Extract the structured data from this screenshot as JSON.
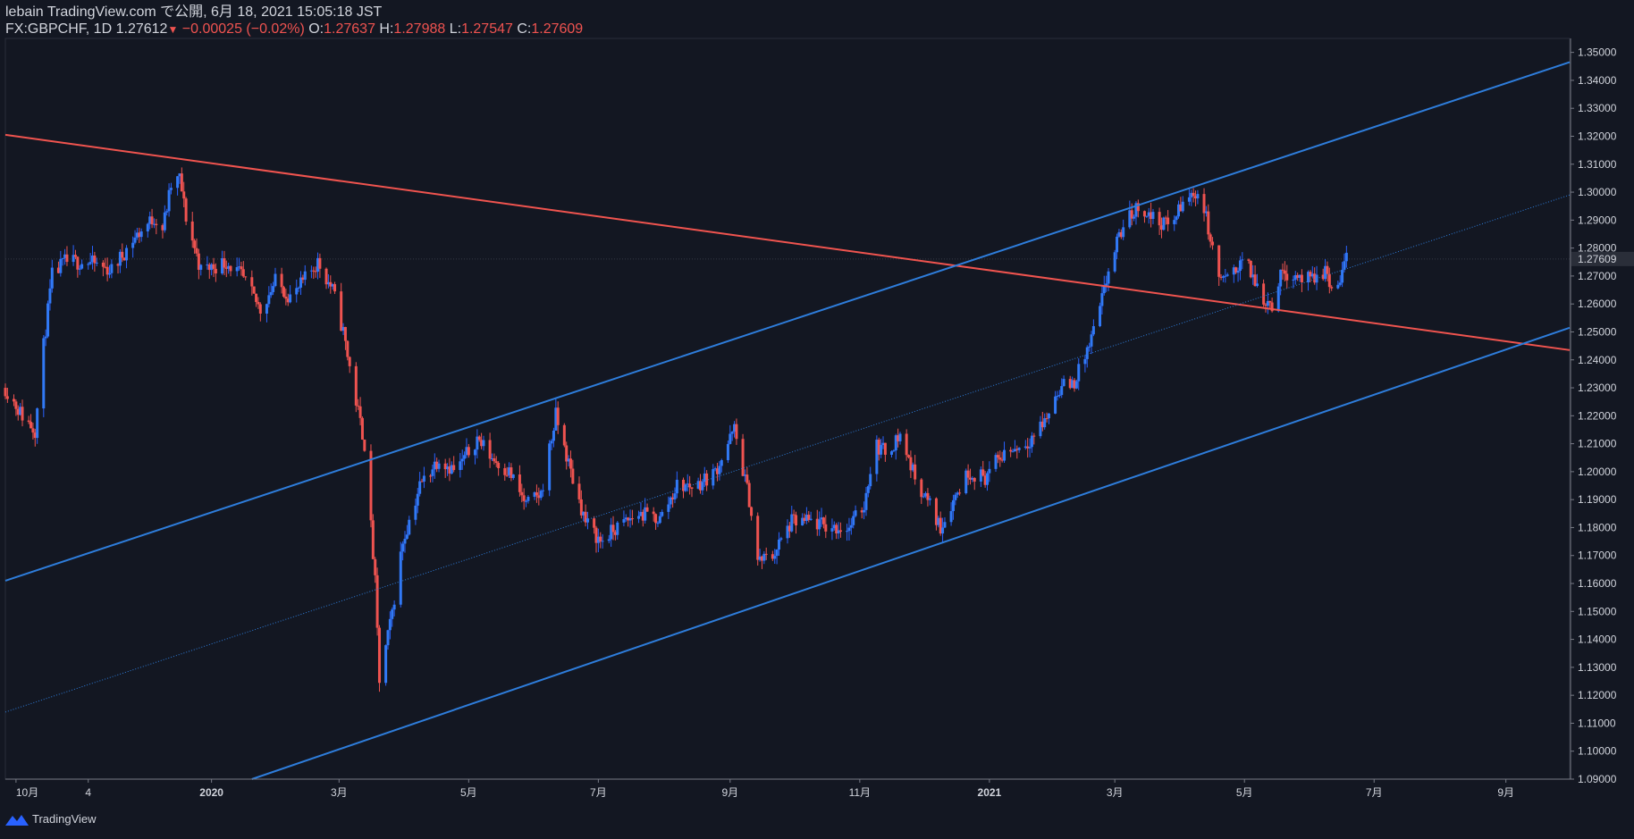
{
  "header": {
    "publish_line": "lebain TradingView.com で公開, 6月 18, 2021 15:05:18 JST",
    "symbol": "FX:GBPCHF, 1D",
    "last": "1.27612",
    "change": "−0.00025 (−0.02%)",
    "o_label": "O:",
    "o_value": "1.27637",
    "h_label": "H:",
    "h_value": "1.27988",
    "l_label": "L:",
    "l_value": "1.27547",
    "c_label": "C:",
    "c_value": "1.27609"
  },
  "footer": {
    "brand": "TradingView"
  },
  "colors": {
    "background": "#131722",
    "up": "#2962ff",
    "up_body": "#3179f5",
    "down": "#ef5350",
    "channel": "#2e7ddb",
    "resistance": "#f0544f",
    "axis": "#787b86"
  },
  "chart_data": {
    "type": "candlestick",
    "y_range": [
      1.09,
      1.355
    ],
    "y_ticks": [
      "1.35000",
      "1.34000",
      "1.33000",
      "1.32000",
      "1.31000",
      "1.30000",
      "1.29000",
      "1.28000",
      "1.27000",
      "1.26000",
      "1.25000",
      "1.24000",
      "1.23000",
      "1.22000",
      "1.21000",
      "1.20000",
      "1.19000",
      "1.18000",
      "1.17000",
      "1.16000",
      "1.15000",
      "1.14000",
      "1.13000",
      "1.12000",
      "1.11000",
      "1.10000",
      "1.09000"
    ],
    "x_range": [
      "2019-09-26",
      "2021-10-01"
    ],
    "x_ticks": [
      {
        "date": "2019-10-01",
        "label": "10月"
      },
      {
        "date": "2019-11-04",
        "label": "4"
      },
      {
        "date": "2020-01-01",
        "label": "2020"
      },
      {
        "date": "2020-03-01",
        "label": "3月"
      },
      {
        "date": "2020-05-01",
        "label": "5月"
      },
      {
        "date": "2020-07-01",
        "label": "7月"
      },
      {
        "date": "2020-09-01",
        "label": "9月"
      },
      {
        "date": "2020-11-01",
        "label": "11月"
      },
      {
        "date": "2021-01-01",
        "label": "2021"
      },
      {
        "date": "2021-03-01",
        "label": "3月"
      },
      {
        "date": "2021-05-01",
        "label": "5月"
      },
      {
        "date": "2021-07-01",
        "label": "7月"
      },
      {
        "date": "2021-09-01",
        "label": "9月"
      }
    ],
    "last_price": 1.27609,
    "last_price_label": "1.27609",
    "close_path": [
      [
        "2019-09-26",
        1.23
      ],
      [
        "2019-10-04",
        1.22
      ],
      [
        "2019-10-10",
        1.215
      ],
      [
        "2019-10-14",
        1.245
      ],
      [
        "2019-10-18",
        1.27
      ],
      [
        "2019-10-24",
        1.275
      ],
      [
        "2019-11-04",
        1.275
      ],
      [
        "2019-11-15",
        1.272
      ],
      [
        "2019-11-25",
        1.283
      ],
      [
        "2019-12-05",
        1.291
      ],
      [
        "2019-12-09",
        1.287
      ],
      [
        "2019-12-13",
        1.302
      ],
      [
        "2019-12-17",
        1.305
      ],
      [
        "2019-12-20",
        1.291
      ],
      [
        "2019-12-27",
        1.272
      ],
      [
        "2020-01-08",
        1.275
      ],
      [
        "2020-01-15",
        1.27
      ],
      [
        "2020-01-24",
        1.258
      ],
      [
        "2020-01-31",
        1.268
      ],
      [
        "2020-02-08",
        1.262
      ],
      [
        "2020-02-15",
        1.27
      ],
      [
        "2020-02-20",
        1.275
      ],
      [
        "2020-02-27",
        1.265
      ],
      [
        "2020-03-03",
        1.25
      ],
      [
        "2020-03-09",
        1.225
      ],
      [
        "2020-03-13",
        1.21
      ],
      [
        "2020-03-18",
        1.16
      ],
      [
        "2020-03-20",
        1.125
      ],
      [
        "2020-03-25",
        1.145
      ],
      [
        "2020-03-31",
        1.175
      ],
      [
        "2020-04-08",
        1.195
      ],
      [
        "2020-04-17",
        1.205
      ],
      [
        "2020-04-25",
        1.2
      ],
      [
        "2020-05-05",
        1.212
      ],
      [
        "2020-05-12",
        1.205
      ],
      [
        "2020-05-20",
        1.2
      ],
      [
        "2020-05-28",
        1.188
      ],
      [
        "2020-06-04",
        1.192
      ],
      [
        "2020-06-11",
        1.22
      ],
      [
        "2020-06-18",
        1.2
      ],
      [
        "2020-06-25",
        1.182
      ],
      [
        "2020-07-02",
        1.175
      ],
      [
        "2020-07-10",
        1.18
      ],
      [
        "2020-07-20",
        1.185
      ],
      [
        "2020-07-30",
        1.183
      ],
      [
        "2020-08-07",
        1.195
      ],
      [
        "2020-08-16",
        1.195
      ],
      [
        "2020-08-25",
        1.2
      ],
      [
        "2020-09-03",
        1.215
      ],
      [
        "2020-09-10",
        1.19
      ],
      [
        "2020-09-14",
        1.168
      ],
      [
        "2020-09-21",
        1.17
      ],
      [
        "2020-09-30",
        1.182
      ],
      [
        "2020-10-09",
        1.182
      ],
      [
        "2020-10-18",
        1.18
      ],
      [
        "2020-10-27",
        1.18
      ],
      [
        "2020-11-03",
        1.188
      ],
      [
        "2020-11-08",
        1.21
      ],
      [
        "2020-11-13",
        1.207
      ],
      [
        "2020-11-20",
        1.213
      ],
      [
        "2020-11-27",
        1.198
      ],
      [
        "2020-12-04",
        1.188
      ],
      [
        "2020-12-09",
        1.18
      ],
      [
        "2020-12-15",
        1.19
      ],
      [
        "2020-12-22",
        1.2
      ],
      [
        "2020-12-30",
        1.198
      ],
      [
        "2021-01-08",
        1.207
      ],
      [
        "2021-01-18",
        1.21
      ],
      [
        "2021-01-27",
        1.218
      ],
      [
        "2021-02-03",
        1.23
      ],
      [
        "2021-02-10",
        1.232
      ],
      [
        "2021-02-17",
        1.245
      ],
      [
        "2021-02-22",
        1.258
      ],
      [
        "2021-02-27",
        1.275
      ],
      [
        "2021-03-05",
        1.288
      ],
      [
        "2021-03-12",
        1.295
      ],
      [
        "2021-03-20",
        1.29
      ],
      [
        "2021-03-27",
        1.288
      ],
      [
        "2021-04-02",
        1.296
      ],
      [
        "2021-04-08",
        1.3
      ],
      [
        "2021-04-11",
        1.298
      ],
      [
        "2021-04-15",
        1.283
      ],
      [
        "2021-04-18",
        1.27
      ],
      [
        "2021-04-24",
        1.268
      ],
      [
        "2021-04-30",
        1.277
      ],
      [
        "2021-05-06",
        1.268
      ],
      [
        "2021-05-10",
        1.262
      ],
      [
        "2021-05-14",
        1.26
      ],
      [
        "2021-05-19",
        1.272
      ],
      [
        "2021-05-26",
        1.27
      ],
      [
        "2021-06-02",
        1.268
      ],
      [
        "2021-06-08",
        1.272
      ],
      [
        "2021-06-11",
        1.265
      ],
      [
        "2021-06-15",
        1.268
      ],
      [
        "2021-06-18",
        1.276
      ]
    ],
    "trendlines": [
      {
        "kind": "resistance",
        "color": "#f0544f",
        "style": "solid",
        "points": [
          [
            "2019-09-26",
            1.3205
          ],
          [
            "2021-10-01",
            1.2435
          ]
        ]
      },
      {
        "kind": "channel-upper",
        "color": "#2e7ddb",
        "style": "solid",
        "points": [
          [
            "2019-09-26",
            1.161
          ],
          [
            "2021-10-01",
            1.3465
          ]
        ]
      },
      {
        "kind": "channel-lower",
        "color": "#2e7ddb",
        "style": "solid",
        "points": [
          [
            "2020-01-20",
            1.09
          ],
          [
            "2021-10-01",
            1.2515
          ]
        ]
      },
      {
        "kind": "channel-mid",
        "color": "#2e7ddb",
        "style": "dotted",
        "points": [
          [
            "2019-09-26",
            1.114
          ],
          [
            "2021-10-01",
            1.299
          ]
        ]
      }
    ]
  }
}
